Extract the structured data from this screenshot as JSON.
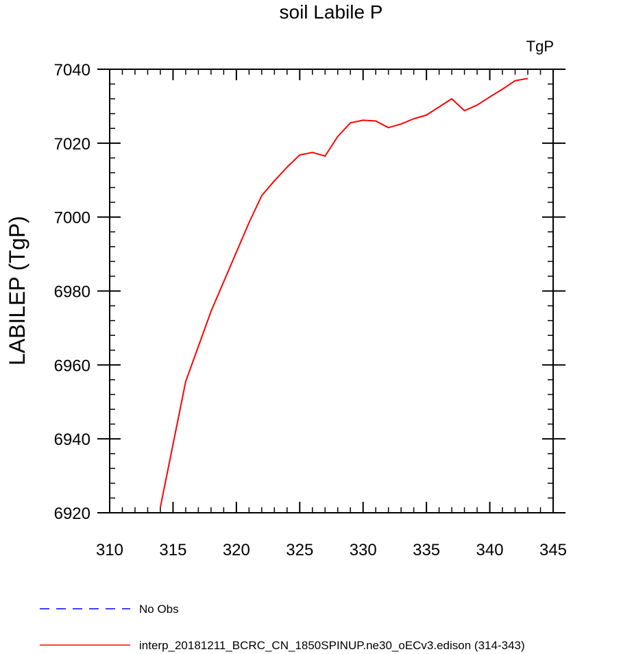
{
  "chart_data": {
    "type": "line",
    "title": "soil Labile P",
    "units_label": "TgP",
    "ylabel": "LABILEP  (TgP)",
    "xlabel": "",
    "xlim": [
      310,
      345
    ],
    "ylim": [
      6920,
      7040
    ],
    "x_ticks": [
      310,
      315,
      320,
      325,
      330,
      335,
      340,
      345
    ],
    "y_ticks": [
      6920,
      6940,
      6960,
      6980,
      7000,
      7020,
      7040
    ],
    "grid": false,
    "legend_placement": "bottom-left",
    "series": [
      {
        "name": "No Obs",
        "color": "#0000ff",
        "dash": "dashed",
        "x": [],
        "y": []
      },
      {
        "name": "interp_20181211_BCRC_CN_1850SPINUP.ne30_oECv3.edison (314-343)",
        "color": "#ff0000",
        "dash": "solid",
        "x": [
          314,
          315,
          316,
          317,
          318,
          319,
          320,
          321,
          322,
          323,
          324,
          325,
          326,
          327,
          328,
          329,
          330,
          331,
          332,
          333,
          334,
          335,
          336,
          337,
          338,
          339,
          340,
          341,
          342,
          343
        ],
        "y": [
          6921.5,
          6938.5,
          6955.5,
          6965.0,
          6974.5,
          6982.5,
          6990.5,
          6998.5,
          7005.8,
          7009.8,
          7013.5,
          7016.8,
          7017.5,
          7016.5,
          7021.8,
          7025.5,
          7026.2,
          7026.0,
          7024.2,
          7025.2,
          7026.6,
          7027.6,
          7029.8,
          7032.0,
          7028.8,
          7030.3,
          7032.5,
          7034.6,
          7036.9,
          7037.5
        ]
      }
    ]
  }
}
